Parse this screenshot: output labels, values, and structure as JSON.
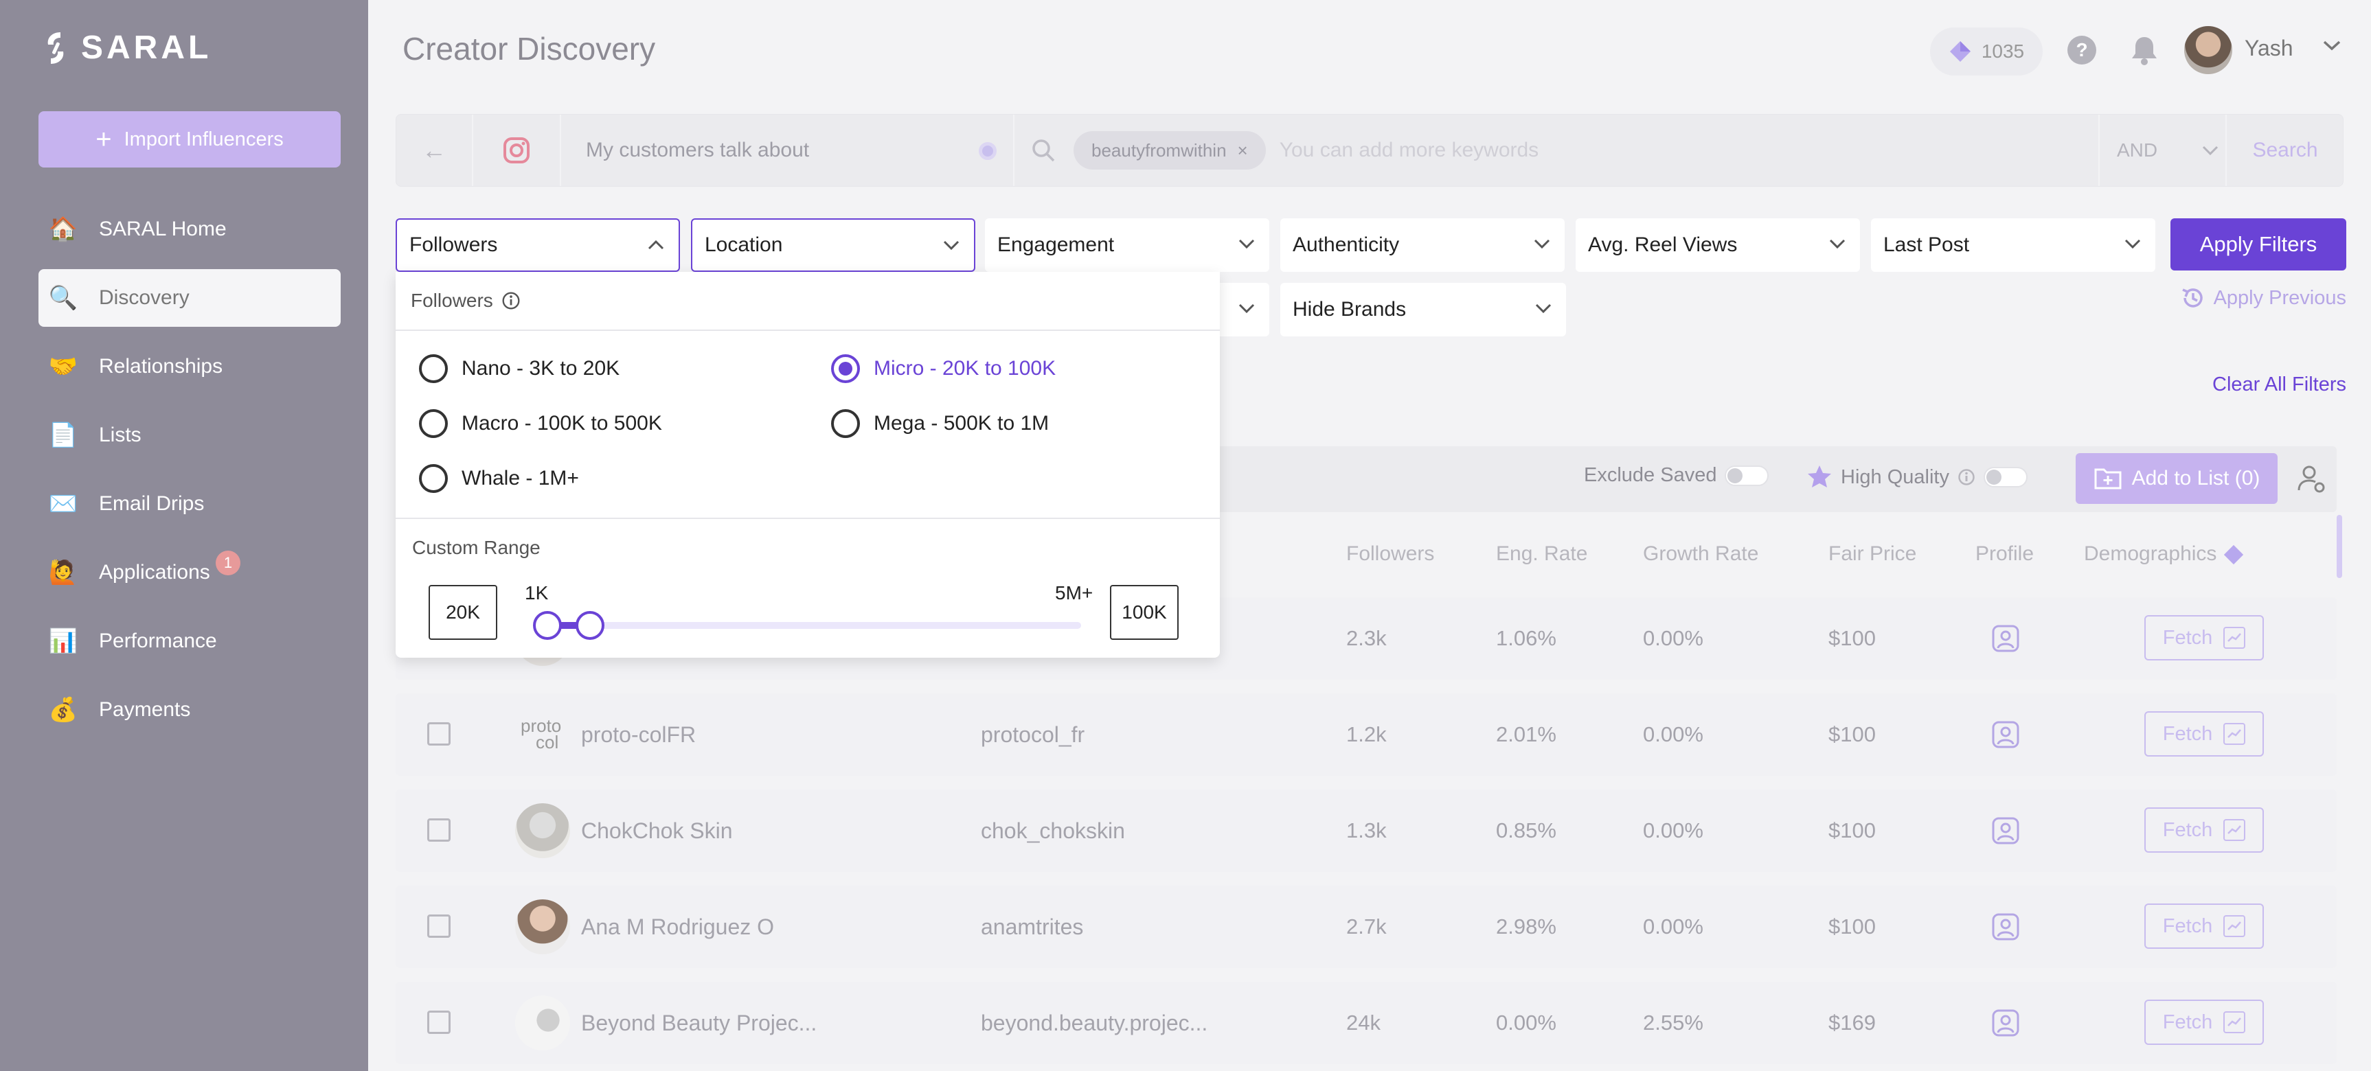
{
  "app": {
    "logo_text": "SARAL",
    "import_label": "Import Influencers"
  },
  "sidebar": {
    "items": [
      {
        "label": "SARAL Home",
        "icon": "house-icon",
        "glyph": "🏠",
        "badge": ""
      },
      {
        "label": "Discovery",
        "icon": "magnifier-icon",
        "glyph": "🔍",
        "badge": ""
      },
      {
        "label": "Relationships",
        "icon": "handshake-icon",
        "glyph": "🤝",
        "badge": ""
      },
      {
        "label": "Lists",
        "icon": "document-icon",
        "glyph": "📄",
        "badge": ""
      },
      {
        "label": "Email Drips",
        "icon": "envelope-icon",
        "glyph": "✉️",
        "badge": ""
      },
      {
        "label": "Applications",
        "icon": "person-icon",
        "glyph": "🙋",
        "badge": "1"
      },
      {
        "label": "Performance",
        "icon": "bar-chart-icon",
        "glyph": "📊",
        "badge": ""
      },
      {
        "label": "Payments",
        "icon": "money-bag-icon",
        "glyph": "💰",
        "badge": ""
      }
    ]
  },
  "header": {
    "title": "Creator Discovery",
    "credits": "1035",
    "help": "?",
    "user": "Yash"
  },
  "search": {
    "platform": "instagram",
    "mode_text": "My customers talk about",
    "keywords": [
      "beautyfromwithin"
    ],
    "keyword_remove": "×",
    "placeholder": "You can add more keywords",
    "operator": "AND",
    "search_label": "Search",
    "back_glyph": "←"
  },
  "filters": {
    "row1": [
      "Followers",
      "Location",
      "Engagement",
      "Authenticity",
      "Avg. Reel Views",
      "Last Post"
    ],
    "row2_hidden": "",
    "row2": [
      "Hide Brands"
    ],
    "apply": "Apply Filters",
    "apply_previous": "Apply Previous",
    "clear_all": "Clear All Filters"
  },
  "followers_dropdown": {
    "title": "Followers",
    "options": [
      {
        "label": "Nano - 3K to 20K",
        "selected": false
      },
      {
        "label": "Micro - 20K to 100K",
        "selected": true
      },
      {
        "label": "Macro - 100K to 500K",
        "selected": false
      },
      {
        "label": "Mega - 500K to 1M",
        "selected": false
      },
      {
        "label": "Whale - 1M+",
        "selected": false
      }
    ],
    "custom_range_label": "Custom Range",
    "min_value": "20K",
    "max_value": "100K",
    "scale_min": "1K",
    "scale_max": "5M+"
  },
  "toolbar": {
    "exclude_saved": "Exclude Saved",
    "high_quality": "High Quality",
    "add_to_list": "Add to List (0)"
  },
  "table": {
    "columns": [
      "Followers",
      "Eng. Rate",
      "Growth Rate",
      "Fair Price",
      "Profile",
      "Demographics"
    ],
    "fetch_label": "Fetch",
    "rows": [
      {
        "name": "",
        "handle": "",
        "followers": "2.3k",
        "eng": "1.06%",
        "growth": "0.00%",
        "price": "$100"
      },
      {
        "name": "proto-colFR",
        "handle": "protocol_fr",
        "followers": "1.2k",
        "eng": "2.01%",
        "growth": "0.00%",
        "price": "$100"
      },
      {
        "name": "ChokChok Skin",
        "handle": "chok_chokskin",
        "followers": "1.3k",
        "eng": "0.85%",
        "growth": "0.00%",
        "price": "$100"
      },
      {
        "name": "Ana M Rodriguez O",
        "handle": "anamtrites",
        "followers": "2.7k",
        "eng": "2.98%",
        "growth": "0.00%",
        "price": "$100"
      },
      {
        "name": "Beyond Beauty Projec...",
        "handle": "beyond.beauty.projec...",
        "followers": "24k",
        "eng": "0.00%",
        "growth": "2.55%",
        "price": "$169"
      }
    ]
  },
  "colors": {
    "accent": "#6a43d6",
    "accent_light": "#c6b3ef",
    "sidebar_bg": "#8e8b99"
  }
}
